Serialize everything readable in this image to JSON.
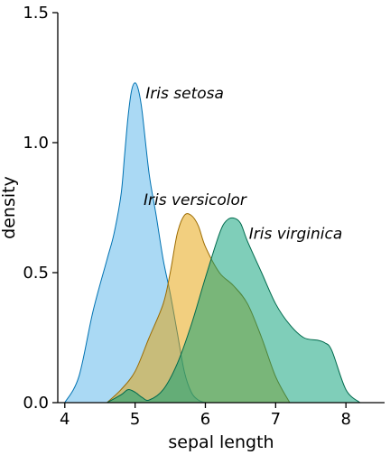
{
  "chart_data": {
    "type": "area",
    "xlabel": "sepal length",
    "ylabel": "density",
    "xlim": [
      3.9,
      8.55
    ],
    "ylim": [
      0,
      1.5
    ],
    "x_ticks": [
      "4",
      "5",
      "6",
      "7",
      "8"
    ],
    "y_ticks": [
      "0.0",
      "0.5",
      "1.0",
      "1.5"
    ],
    "grid": false,
    "legend": "none (direct labels)",
    "series": [
      {
        "name": "Iris setosa",
        "fill": "#56B4E9",
        "stroke": "#0072B2",
        "x": [
          4.0,
          4.2,
          4.4,
          4.6,
          4.7,
          4.8,
          4.85,
          4.9,
          4.95,
          5.0,
          5.05,
          5.1,
          5.2,
          5.3,
          5.4,
          5.5,
          5.6,
          5.7,
          5.8,
          5.9,
          6.0
        ],
        "y": [
          0.0,
          0.1,
          0.35,
          0.55,
          0.65,
          0.8,
          0.95,
          1.1,
          1.2,
          1.23,
          1.2,
          1.12,
          0.88,
          0.72,
          0.55,
          0.42,
          0.27,
          0.12,
          0.04,
          0.01,
          0.0
        ]
      },
      {
        "name": "Iris versicolor",
        "fill": "#E69F00",
        "stroke": "#9C6B00",
        "x": [
          4.6,
          4.8,
          5.0,
          5.2,
          5.4,
          5.5,
          5.6,
          5.7,
          5.8,
          5.9,
          6.0,
          6.2,
          6.4,
          6.6,
          6.8,
          7.0,
          7.2
        ],
        "y": [
          0.0,
          0.05,
          0.12,
          0.25,
          0.38,
          0.5,
          0.65,
          0.72,
          0.72,
          0.68,
          0.6,
          0.5,
          0.45,
          0.38,
          0.25,
          0.1,
          0.0
        ]
      },
      {
        "name": "Iris virginica",
        "fill": "#009E73",
        "stroke": "#006A4D",
        "x": [
          4.6,
          4.8,
          4.9,
          5.0,
          5.1,
          5.2,
          5.4,
          5.6,
          5.8,
          6.0,
          6.2,
          6.3,
          6.4,
          6.5,
          6.6,
          6.8,
          7.0,
          7.2,
          7.4,
          7.6,
          7.7,
          7.8,
          8.0,
          8.2
        ],
        "y": [
          0.0,
          0.03,
          0.05,
          0.04,
          0.02,
          0.01,
          0.05,
          0.15,
          0.3,
          0.48,
          0.65,
          0.7,
          0.71,
          0.69,
          0.62,
          0.5,
          0.38,
          0.3,
          0.25,
          0.24,
          0.23,
          0.2,
          0.05,
          0.0
        ]
      }
    ],
    "labels": [
      {
        "text": "Iris setosa",
        "x": 5.15,
        "y": 1.17
      },
      {
        "text": "Iris versicolor",
        "x": 5.12,
        "y": 0.76
      },
      {
        "text": "Iris virginica",
        "x": 6.62,
        "y": 0.63
      }
    ]
  }
}
